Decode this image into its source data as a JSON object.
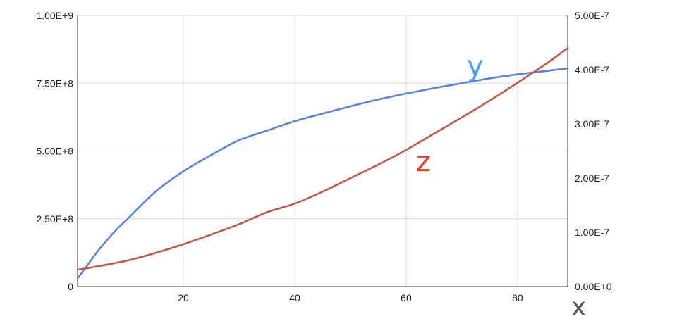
{
  "chart_data": {
    "type": "line",
    "title": "",
    "xlabel": "x",
    "xlim": [
      1,
      89
    ],
    "x_ticks": [
      "20",
      "40",
      "60",
      "80"
    ],
    "x_tick_values": [
      20,
      40,
      60,
      80
    ],
    "y_left": {
      "lim": [
        0,
        1000000000
      ],
      "tick_values": [
        0,
        250000000,
        500000000,
        750000000,
        1000000000
      ],
      "tick_labels": [
        "0",
        "2.50E+8",
        "5.00E+8",
        "7.50E+8",
        "1.00E+9"
      ]
    },
    "y_right": {
      "lim": [
        0,
        5e-07
      ],
      "tick_values": [
        0,
        1e-07,
        2e-07,
        3e-07,
        4e-07,
        5e-07
      ],
      "tick_labels": [
        "0.00E+0",
        "1.00E-7",
        "2.00E-7",
        "3.00E-7",
        "4.00E-7",
        "5.00E-7"
      ]
    },
    "grid": true,
    "series": [
      {
        "name": "y",
        "axis": "left",
        "color": "#5b84d8",
        "label_color": "#4aa3f0",
        "x": [
          1,
          3,
          5,
          8,
          10,
          15,
          20,
          25,
          30,
          35,
          40,
          45,
          50,
          55,
          60,
          65,
          70,
          75,
          80,
          85,
          89
        ],
        "values": [
          30000000,
          85000000,
          140000000,
          210000000,
          250000000,
          350000000,
          425000000,
          485000000,
          540000000,
          575000000,
          610000000,
          638000000,
          665000000,
          690000000,
          712000000,
          732000000,
          750000000,
          768000000,
          783000000,
          795000000,
          805000000
        ]
      },
      {
        "name": "z",
        "axis": "right",
        "color": "#c5574a",
        "label_color": "#e53e2a",
        "x": [
          1,
          5,
          10,
          15,
          20,
          25,
          30,
          35,
          40,
          45,
          50,
          55,
          60,
          65,
          70,
          75,
          80,
          85,
          89
        ],
        "values": [
          3.1e-08,
          3.8e-08,
          4.8e-08,
          6.2e-08,
          7.8e-08,
          9.6e-08,
          1.15e-07,
          1.37e-07,
          1.53e-07,
          1.75e-07,
          2e-07,
          2.25e-07,
          2.52e-07,
          2.82e-07,
          3.12e-07,
          3.43e-07,
          3.76e-07,
          4.1e-07,
          4.4e-07
        ]
      }
    ]
  }
}
